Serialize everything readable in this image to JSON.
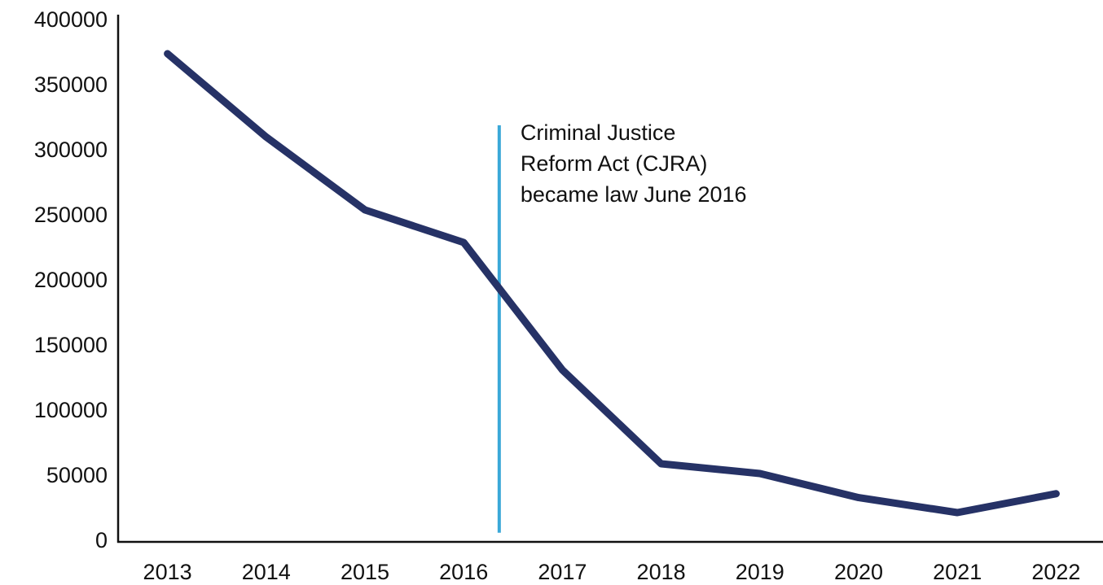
{
  "chart_data": {
    "type": "line",
    "x": [
      2013,
      2014,
      2015,
      2016,
      2017,
      2018,
      2019,
      2020,
      2021,
      2022
    ],
    "series": [
      {
        "color": "#263266",
        "values": [
          375000,
          311000,
          255000,
          230000,
          132000,
          60000,
          52500,
          34000,
          22500,
          37000
        ]
      }
    ],
    "xlim": [
      2012.5,
      2022.5
    ],
    "xticks": [
      2013,
      2014,
      2015,
      2016,
      2017,
      2018,
      2019,
      2020,
      2021,
      2022
    ],
    "ylim": [
      0,
      400000
    ],
    "yticks": [
      0,
      50000,
      100000,
      150000,
      200000,
      250000,
      300000,
      350000,
      400000
    ],
    "grid": false,
    "annotation": {
      "lines": [
        "Criminal Justice",
        "Reform Act (CJRA)",
        "became law June 2016"
      ],
      "x": 2016.36,
      "y_range": [
        7000,
        320000
      ],
      "color": "#3aa8d8"
    }
  }
}
